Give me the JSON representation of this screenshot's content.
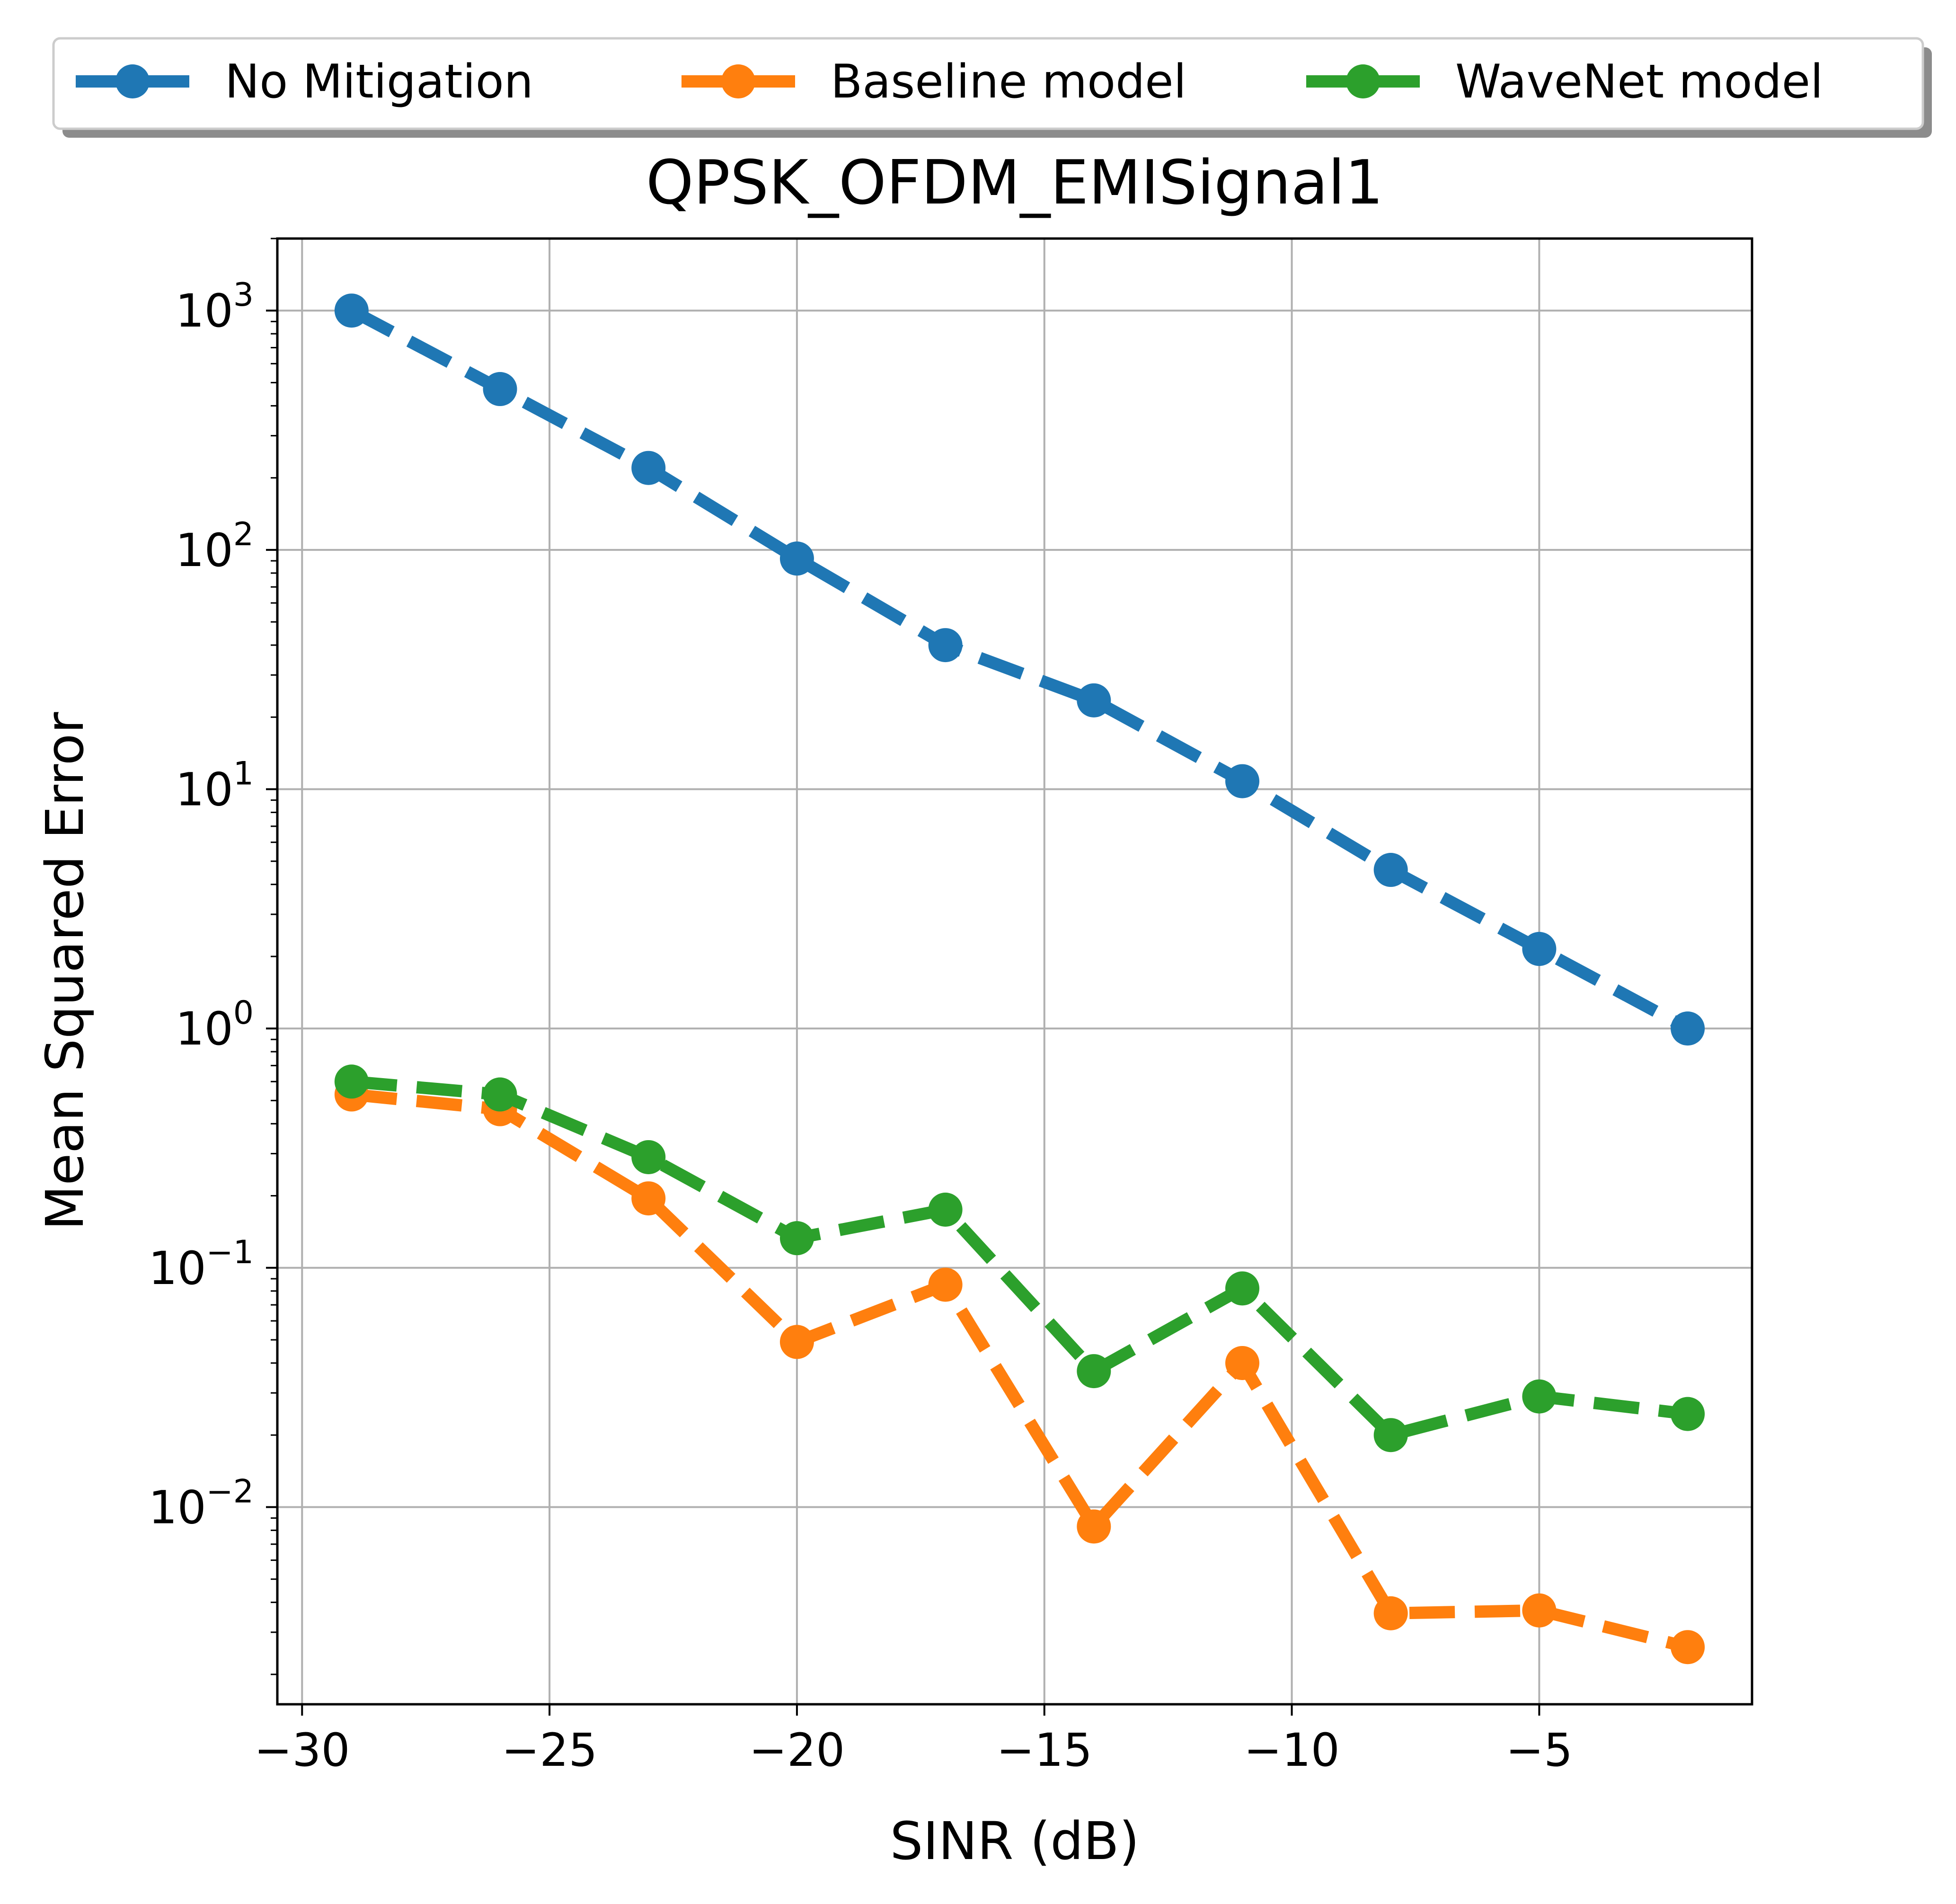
{
  "chart_data": {
    "type": "line",
    "title": "QPSK_OFDM_EMISignal1",
    "xlabel": "SINR (dB)",
    "ylabel": "Mean Squared Error",
    "xlim": [
      -30.5,
      -0.7
    ],
    "ylim": [
      0.0015,
      2000
    ],
    "yscale": "log",
    "grid": true,
    "legend_position": "top, above title",
    "x_ticks": [
      -30,
      -25,
      -20,
      -15,
      -10,
      -5
    ],
    "x_tick_labels": [
      "−30",
      "−25",
      "−20",
      "−15",
      "−10",
      "−5"
    ],
    "y_ticks": [
      {
        "value": 1000,
        "base": "10",
        "exp": "3"
      },
      {
        "value": 100,
        "base": "10",
        "exp": "2"
      },
      {
        "value": 10,
        "base": "10",
        "exp": "1"
      },
      {
        "value": 1,
        "base": "10",
        "exp": "0"
      },
      {
        "value": 0.1,
        "base": "10",
        "exp": "−1"
      },
      {
        "value": 0.01,
        "base": "10",
        "exp": "−2"
      }
    ],
    "x": [
      -29,
      -26,
      -23,
      -20,
      -17,
      -14,
      -11,
      -8,
      -5,
      -2
    ],
    "series": [
      {
        "name": "No Mitigation",
        "color": "#1f77b4",
        "values": [
          1000,
          470,
          220,
          92,
          40,
          23.5,
          10.8,
          4.6,
          2.15,
          1.0
        ]
      },
      {
        "name": "Baseline model",
        "color": "#ff7f0e",
        "values": [
          0.53,
          0.46,
          0.195,
          0.049,
          0.085,
          0.0083,
          0.04,
          0.0036,
          0.0037,
          0.0026
        ]
      },
      {
        "name": "WaveNet model",
        "color": "#2ca02c",
        "values": [
          0.6,
          0.53,
          0.29,
          0.133,
          0.175,
          0.037,
          0.082,
          0.02,
          0.029,
          0.0245
        ]
      }
    ]
  }
}
